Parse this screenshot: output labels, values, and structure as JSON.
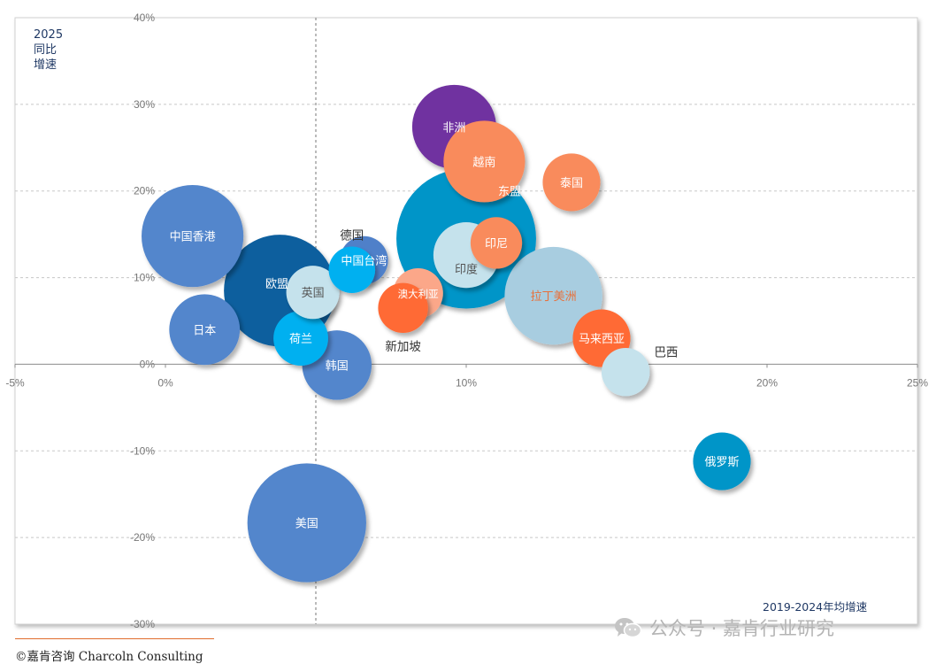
{
  "chart_data": {
    "type": "bubble",
    "title": "",
    "xlabel": "2019-2024年均增速",
    "ylabel_lines": [
      "2025",
      "同比",
      "增速"
    ],
    "xlim": [
      -5,
      25
    ],
    "ylim": [
      -30,
      40
    ],
    "x_ticks": [
      {
        "value": -5,
        "label": "-5%"
      },
      {
        "value": 0,
        "label": "0%"
      },
      {
        "value": 5,
        "label": "5%"
      },
      {
        "value": 10,
        "label": "10%"
      },
      {
        "value": 15,
        "label": "15%"
      },
      {
        "value": 20,
        "label": "20%"
      },
      {
        "value": 25,
        "label": "25%"
      }
    ],
    "y_ticks": [
      {
        "value": -30,
        "label": "-30%"
      },
      {
        "value": -20,
        "label": "-20%"
      },
      {
        "value": -10,
        "label": "-10%"
      },
      {
        "value": 0,
        "label": "0%"
      },
      {
        "value": 10,
        "label": "10%"
      },
      {
        "value": 20,
        "label": "20%"
      },
      {
        "value": 30,
        "label": "30%"
      },
      {
        "value": 40,
        "label": "40%"
      }
    ],
    "reference_line_x": 5,
    "grid": "horizontal dashed",
    "bubbles": [
      {
        "label": "东盟",
        "x": 10.0,
        "y": 14.5,
        "size": 235,
        "color": "#0095c8",
        "label_color": "#ffffff",
        "label_pos": "upper-right"
      },
      {
        "label": "欧盟",
        "x": 3.8,
        "y": 8.5,
        "size": 150,
        "color": "#0e5f9e",
        "label_color": "#ffffff",
        "label_pos": "upper-left"
      },
      {
        "label": "美国",
        "x": 4.7,
        "y": -18.3,
        "size": 170,
        "color": "#5386cc",
        "label_color": "#ffffff",
        "label_pos": "center"
      },
      {
        "label": "中国香港",
        "x": 0.9,
        "y": 14.8,
        "size": 125,
        "color": "#5386cc",
        "label_color": "#ffffff",
        "label_pos": "center"
      },
      {
        "label": "拉丁美洲",
        "x": 12.9,
        "y": 7.9,
        "size": 115,
        "color": "#a8cde0",
        "label_color": "#e8703a",
        "label_pos": "center"
      },
      {
        "label": "日本",
        "x": 1.3,
        "y": 4.0,
        "size": 60,
        "color": "#5386cc",
        "label_color": "#ffffff",
        "label_pos": "center"
      },
      {
        "label": "非洲",
        "x": 9.6,
        "y": 27.4,
        "size": 85,
        "color": "#7030a0",
        "label_color": "#ffffff",
        "label_pos": "center"
      },
      {
        "label": "越南",
        "x": 10.6,
        "y": 23.4,
        "size": 80,
        "color": "#f98b5c",
        "label_color": "#ffffff",
        "label_pos": "center"
      },
      {
        "label": "韩国",
        "x": 5.7,
        "y": -0.1,
        "size": 58,
        "color": "#5386cc",
        "label_color": "#ffffff",
        "label_pos": "center"
      },
      {
        "label": "泰国",
        "x": 13.5,
        "y": 21.0,
        "size": 40,
        "color": "#f98b5c",
        "label_color": "#ffffff",
        "label_pos": "center"
      },
      {
        "label": "中国台湾",
        "x": 6.6,
        "y": 12.0,
        "size": 28,
        "color": "#4f80c9",
        "label_color": "#ffffff",
        "label_pos": "center"
      },
      {
        "label": "德国",
        "x": 6.2,
        "y": 10.9,
        "size": 26,
        "color": "#00b0f0",
        "label_color": "#333333",
        "label_pos": "above"
      },
      {
        "label": "英国",
        "x": 4.9,
        "y": 8.3,
        "size": 34,
        "color": "#c5e2ec",
        "label_color": "#555555",
        "label_pos": "center"
      },
      {
        "label": "荷兰",
        "x": 4.5,
        "y": 3.0,
        "size": 36,
        "color": "#00b0f0",
        "label_color": "#ffffff",
        "label_pos": "center"
      },
      {
        "label": "印度",
        "x": 10.0,
        "y": 12.6,
        "size": 52,
        "color": "#c5e2ec",
        "label_color": "#555555",
        "label_pos": "lower"
      },
      {
        "label": "印尼",
        "x": 11.0,
        "y": 14.0,
        "size": 32,
        "color": "#f98b5c",
        "label_color": "#ffffff",
        "label_pos": "center"
      },
      {
        "label": "澳大利亚",
        "x": 8.4,
        "y": 8.2,
        "size": 30,
        "color": "#fba789",
        "label_color": "#ffffff",
        "label_pos": "center"
      },
      {
        "label": "新加坡",
        "x": 7.9,
        "y": 6.5,
        "size": 30,
        "color": "#ff6b35",
        "label_color": "#333333",
        "label_pos": "below"
      },
      {
        "label": "马来西亚",
        "x": 14.5,
        "y": 3.0,
        "size": 40,
        "color": "#ff6b35",
        "label_color": "#ffffff",
        "label_pos": "center"
      },
      {
        "label": "巴西",
        "x": 15.3,
        "y": -0.9,
        "size": 28,
        "color": "#c5e2ec",
        "label_color": "#0d2345",
        "label_pos": "upper-right"
      },
      {
        "label": "俄罗斯",
        "x": 18.5,
        "y": -11.2,
        "size": 40,
        "color": "#0095c8",
        "label_color": "#ffffff",
        "label_pos": "center"
      }
    ]
  },
  "footer": {
    "copyright": "©嘉肯咨询  Charcoln Consulting"
  },
  "watermark": {
    "text": "公众号 · 嘉肯行业研究"
  }
}
